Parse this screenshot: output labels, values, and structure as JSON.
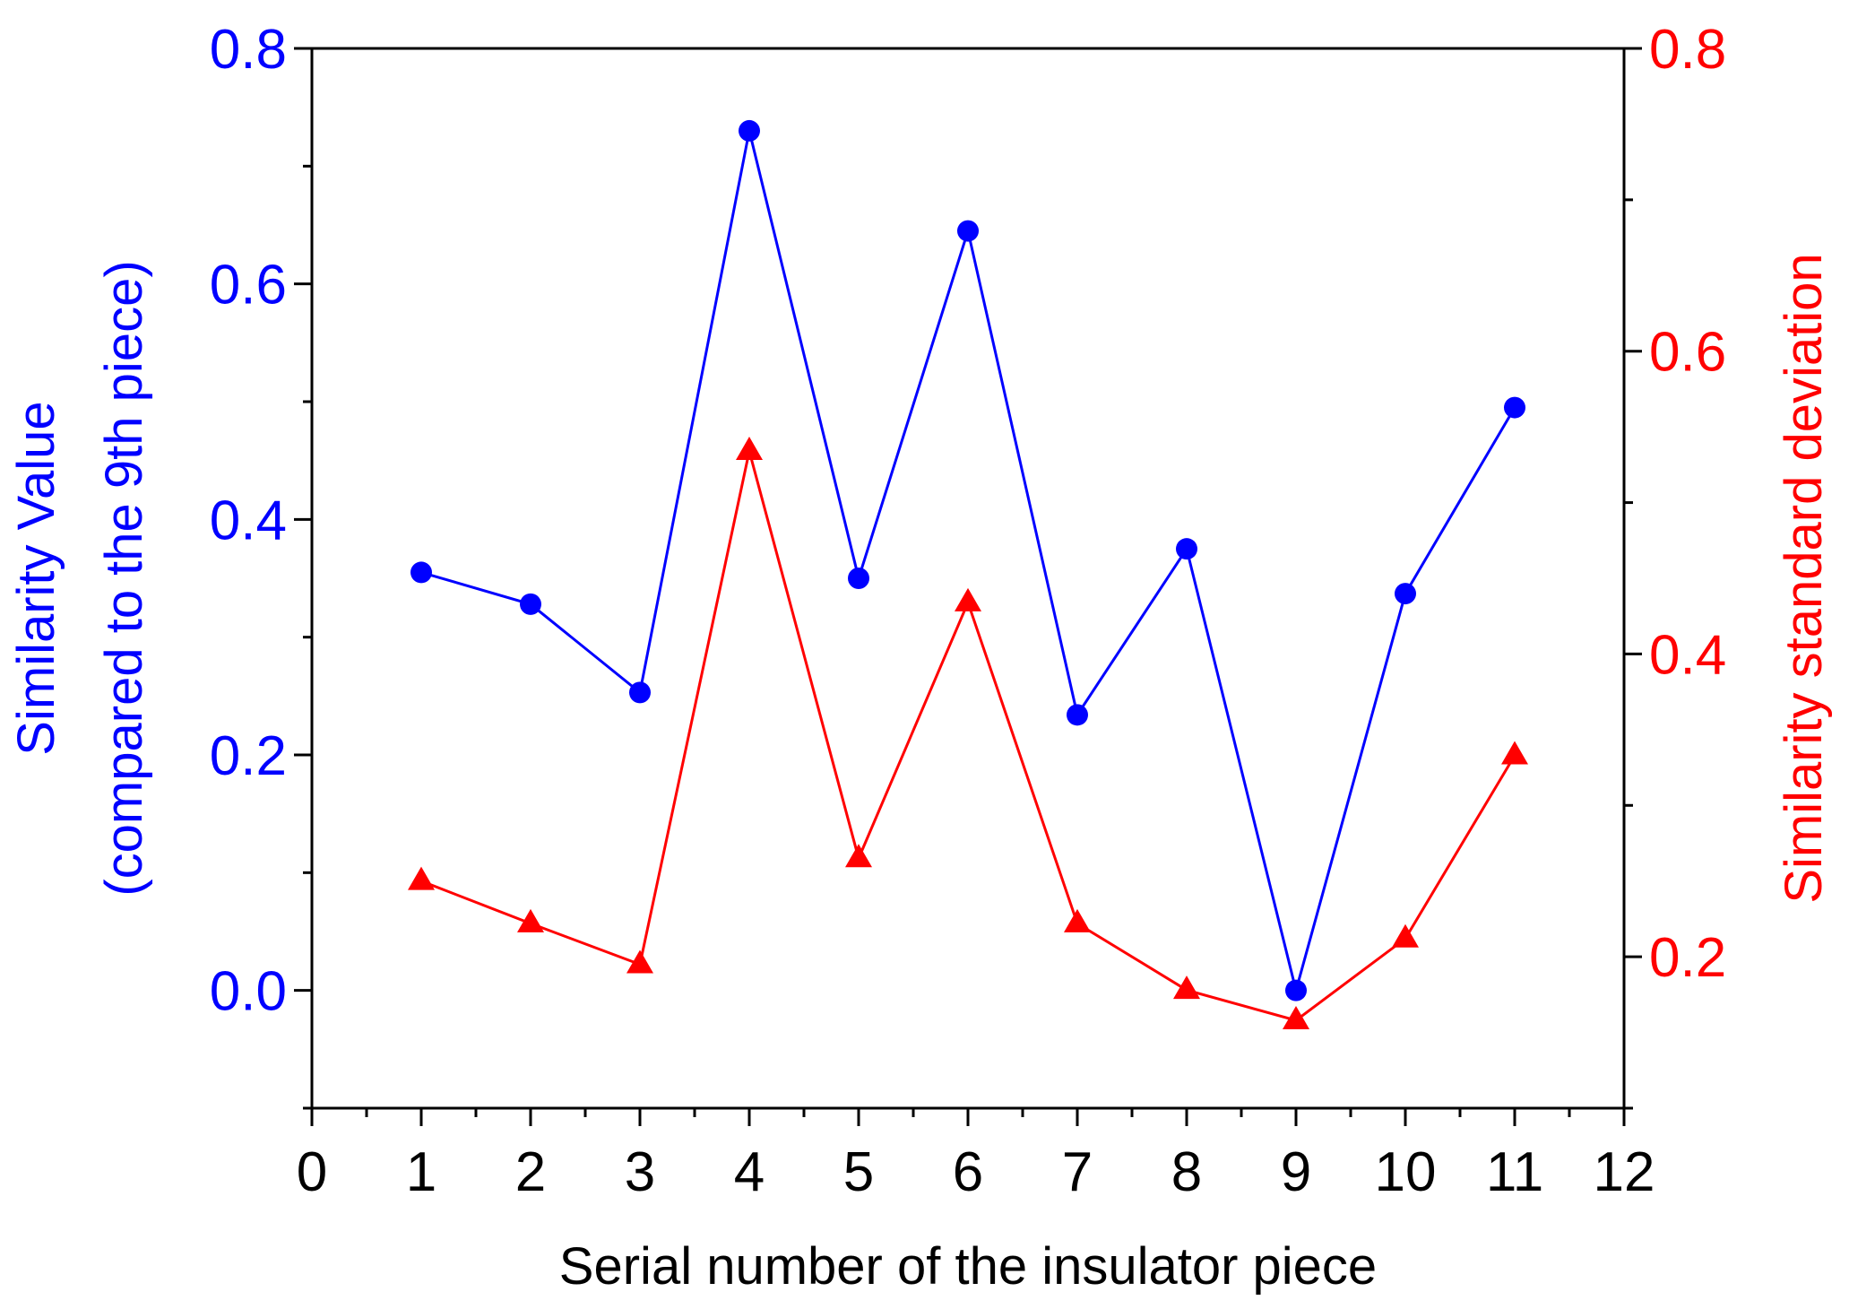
{
  "chart_data": {
    "type": "line",
    "title": "",
    "xlabel": "Serial number of the insulator piece",
    "xlim": [
      0,
      12
    ],
    "x_ticks": [
      "0",
      "1",
      "2",
      "3",
      "4",
      "5",
      "6",
      "7",
      "8",
      "9",
      "10",
      "11",
      "12"
    ],
    "y_left": {
      "label_line1": "Similarity Value",
      "label_line2": "(compared to the 9th piece)",
      "color": "#0000ff",
      "ylim": [
        -0.1,
        0.8
      ],
      "ticks": [
        "0.0",
        "0.2",
        "0.4",
        "0.6",
        "0.8"
      ],
      "tick_values": [
        0.0,
        0.2,
        0.4,
        0.6,
        0.8
      ]
    },
    "y_right": {
      "label": "Similarity standard deviation",
      "color": "#ff0000",
      "ylim": [
        0.1,
        0.8
      ],
      "ticks": [
        "0.2",
        "0.4",
        "0.6",
        "0.8"
      ],
      "tick_values": [
        0.2,
        0.4,
        0.6,
        0.8
      ]
    },
    "series": [
      {
        "name": "Similarity Value",
        "axis": "left",
        "marker": "circle",
        "color": "#0000ff",
        "x": [
          1,
          2,
          3,
          4,
          5,
          6,
          7,
          8,
          9,
          10,
          11
        ],
        "values": [
          0.355,
          0.328,
          0.253,
          0.73,
          0.35,
          0.645,
          0.234,
          0.375,
          0.0,
          0.337,
          0.495
        ]
      },
      {
        "name": "Similarity standard deviation",
        "axis": "right",
        "marker": "triangle",
        "color": "#ff0000",
        "x": [
          1,
          2,
          3,
          4,
          5,
          6,
          7,
          8,
          9,
          10,
          11
        ],
        "values": [
          0.25,
          0.222,
          0.195,
          0.534,
          0.265,
          0.434,
          0.222,
          0.178,
          0.158,
          0.212,
          0.333
        ]
      }
    ]
  }
}
